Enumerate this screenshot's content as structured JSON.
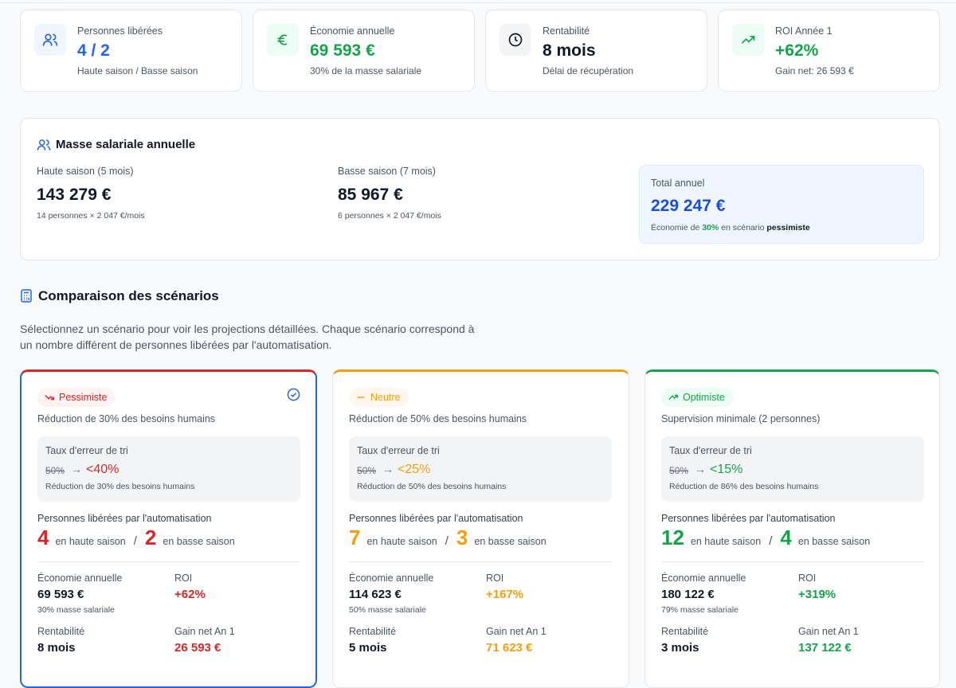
{
  "kpis": [
    {
      "label": "Personnes libérées",
      "value": "4 / 2",
      "sub": "Haute saison / Basse saison"
    },
    {
      "label": "Économie annuelle",
      "value": "69 593 €",
      "sub": "30% de la masse salariale"
    },
    {
      "label": "Rentabilité",
      "value": "8 mois",
      "sub": "Délai de récupération"
    },
    {
      "label": "ROI Année 1",
      "value": "+62%",
      "sub": "Gain net: 26 593 €"
    }
  ],
  "payroll": {
    "title": "Masse salariale annuelle",
    "columns": [
      {
        "label": "Haute saison (5 mois)",
        "value": "143 279 €",
        "detail": "14 personnes × 2 047 €/mois"
      },
      {
        "label": "Basse saison (7 mois)",
        "value": "85 967 €",
        "detail": "6 personnes × 2 047 €/mois"
      }
    ],
    "total": {
      "label": "Total annuel",
      "value": "229 247 €",
      "note_start": "Économie de",
      "note_rate": "30%",
      "note_mid": "en scénario",
      "note_scenario": "pessimiste"
    }
  },
  "section": {
    "title": "Comparaison des scénarios",
    "intro_line1": "Sélectionnez un scénario pour voir les projections détaillées. Chaque scénario correspond à",
    "intro_line2": "un nombre différent de personnes libérées par l'automatisation."
  },
  "scenarios": [
    {
      "badge": "Pessimiste",
      "description": "Réduction de 30% des besoins humains",
      "box_title": "Taux d'erreur de tri",
      "from": "50%",
      "to": "<40%",
      "box_note": "Réduction de 30% des besoins humains",
      "freed_label": "Personnes libérées par l'automatisation",
      "high": "4",
      "high_label": "en haute saison",
      "separator": "/",
      "low": "2",
      "low_label": "en basse saison",
      "metrics": [
        {
          "label": "Économie annuelle",
          "value": "69 593 €",
          "sub": "30% masse salariale"
        },
        {
          "label": "ROI",
          "value": "+62%"
        },
        {
          "label": "Rentabilité",
          "value": "8 mois"
        },
        {
          "label": "Gain net An 1",
          "value": "26 593 €"
        }
      ]
    },
    {
      "badge": "Neutre",
      "description": "Réduction de 50% des besoins humains",
      "box_title": "Taux d'erreur de tri",
      "from": "50%",
      "to": "<25%",
      "box_note": "Réduction de 50% des besoins humains",
      "freed_label": "Personnes libérées par l'automatisation",
      "high": "7",
      "high_label": "en haute saison",
      "separator": "/",
      "low": "3",
      "low_label": "en basse saison",
      "metrics": [
        {
          "label": "Économie annuelle",
          "value": "114 623 €",
          "sub": "50% masse salariale"
        },
        {
          "label": "ROI",
          "value": "+167%"
        },
        {
          "label": "Rentabilité",
          "value": "5 mois"
        },
        {
          "label": "Gain net An 1",
          "value": "71 623 €"
        }
      ]
    },
    {
      "badge": "Optimiste",
      "description": "Supervision minimale (2 personnes)",
      "box_title": "Taux d'erreur de tri",
      "from": "50%",
      "to": "<15%",
      "box_note": "Réduction de 86% des besoins humains",
      "freed_label": "Personnes libérées par l'automatisation",
      "high": "12",
      "high_label": "en haute saison",
      "separator": "/",
      "low": "4",
      "low_label": "en basse saison",
      "metrics": [
        {
          "label": "Économie annuelle",
          "value": "180 122 €",
          "sub": "79% masse salariale"
        },
        {
          "label": "ROI",
          "value": "+319%"
        },
        {
          "label": "Rentabilité",
          "value": "3 mois"
        },
        {
          "label": "Gain net An 1",
          "value": "137 122 €"
        }
      ]
    }
  ]
}
